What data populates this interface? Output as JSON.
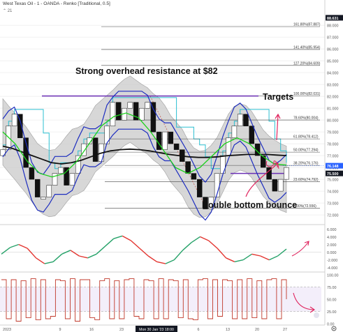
{
  "header": {
    "title": "West Texas Oil - 1 - OANDA - Renko [Traditional, 0.5]",
    "collapse_label": "⌃ 21"
  },
  "colors": {
    "up_brick": "#ffffff",
    "down_brick": "#111111",
    "keltner_blue": "#1d2dbf",
    "fast_ma": "#1bd11b",
    "slow_ma": "#111111",
    "teal_band": "#2bbfd1",
    "fib_line": "#444444",
    "purple_line": "#6a2fb4",
    "annotation_red": "#e0245e",
    "oscillator_red": "#e3342f",
    "oscillator_green": "#26a269",
    "stoch_line": "#c0392b",
    "price_tag_blue": "#2962ff",
    "price_tag_dark": "#131722"
  },
  "chart_data": [
    {
      "type": "line",
      "title": "West Texas Oil - 1 - OANDA - Renko [Traditional, 0.5]",
      "x_tick_labels": [
        "2023",
        "9",
        "16",
        "23",
        "Mon 30 Jan '23 18:00",
        "6",
        "13",
        "20",
        "27"
      ],
      "y_tick_labels": [
        "72.000",
        "73.000",
        "74.000",
        "75.000",
        "76.000",
        "77.000",
        "78.000",
        "79.000",
        "80.000",
        "81.000",
        "82.000",
        "83.000",
        "84.000",
        "85.000",
        "86.000",
        "87.000",
        "88.000"
      ],
      "ylim": [
        71.3,
        88.6
      ],
      "fib_levels": [
        {
          "label": "161.80%(87.887)",
          "value": 87.887
        },
        {
          "label": "141.40%(85.954)",
          "value": 85.954
        },
        {
          "label": "127.20%(84.609)",
          "value": 84.609
        },
        {
          "label": "100.00%(82.031)",
          "value": 82.031
        },
        {
          "label": "78.60%(80.004)",
          "value": 80.004
        },
        {
          "label": "61.80%(78.412)",
          "value": 78.412
        },
        {
          "label": "50.00%(77.294)",
          "value": 77.294
        },
        {
          "label": "38.20%(76.176)",
          "value": 76.176
        },
        {
          "label": "23.60%(74.792)",
          "value": 74.792
        },
        {
          "label": "0.00%(72.556)",
          "value": 72.556
        }
      ],
      "price_tags": [
        {
          "label": "88.631",
          "value": 88.631,
          "style": "dark"
        },
        {
          "label": "76.148",
          "value": 76.148,
          "style": "blue"
        },
        {
          "label": "75.500",
          "value": 75.5,
          "style": "dark"
        }
      ],
      "series": [
        {
          "name": "",
          "role": "renko_close",
          "values": [
            77.5,
            79.5,
            80.5,
            78.5,
            76.0,
            75.0,
            73.5,
            73.5,
            74.5,
            75.5,
            76.0,
            74.5,
            75.5,
            77.0,
            78.0,
            78.5,
            76.5,
            78.0,
            79.5,
            81.5,
            80.0,
            81.0,
            81.5,
            80.0,
            81.0,
            81.5,
            79.0,
            77.5,
            79.0,
            78.0,
            77.5,
            76.5,
            75.5,
            75.0,
            73.5,
            72.5,
            73.5,
            75.5,
            77.0,
            78.5,
            79.5,
            80.5,
            79.5,
            78.0,
            77.0,
            76.0,
            75.0,
            74.0,
            75.0,
            76.0
          ]
        },
        {
          "name": "",
          "role": "slow_ma",
          "values": [
            77.8,
            77.6,
            77.3,
            77.0,
            76.7,
            76.4,
            76.3,
            76.4,
            76.6,
            76.9,
            77.2,
            77.4,
            77.5,
            77.55,
            77.5,
            77.4,
            77.25,
            77.1,
            77.0,
            76.9,
            76.85,
            76.85,
            76.9,
            77.0,
            77.05,
            77.1,
            77.1,
            77.1,
            77.05,
            77.0
          ]
        },
        {
          "name": "",
          "role": "fast_ma",
          "values": [
            79.0,
            78.0,
            76.5,
            75.5,
            75.2,
            75.5,
            76.5,
            78.0,
            79.5,
            80.3,
            80.6,
            80.2,
            79.0,
            77.5,
            76.0,
            75.5,
            76.0,
            77.0,
            78.0,
            78.5,
            78.0,
            77.0,
            76.3,
            76.2
          ]
        }
      ],
      "horizontal_lines": [
        {
          "value": 82.031,
          "color": "purple",
          "label": "Strong overhead resistance at $82"
        },
        {
          "value": 75.5,
          "color": "purple",
          "label": ""
        }
      ],
      "annotations": [
        "Strong overhead resistance at $82",
        "Targets",
        "Double bottom bounce"
      ]
    },
    {
      "type": "line",
      "title": "",
      "y_tick_labels": [
        "6.000",
        "4.000",
        "2.000",
        "0.000",
        "-2.000",
        "-4.000"
      ],
      "ylim": [
        -4.8,
        6.8
      ],
      "series": [
        {
          "name": "",
          "values": [
            -0.5,
            1.2,
            2.0,
            1.0,
            -1.5,
            -3.0,
            -2.5,
            -0.5,
            0.5,
            -1.0,
            -1.5,
            -0.5,
            1.5,
            3.5,
            4.2,
            3.0,
            1.0,
            -1.0,
            -2.5,
            -3.0,
            -2.0,
            0.5,
            2.5,
            4.0,
            3.0,
            1.0,
            -1.5,
            -2.5,
            -2.0,
            -0.5,
            -1.0,
            -2.0,
            -1.0,
            0.8
          ]
        }
      ]
    },
    {
      "type": "line",
      "title": "",
      "y_tick_labels": [
        "100.00",
        "75.00",
        "50.00",
        "25.00",
        "0.00"
      ],
      "ylim": [
        0,
        100
      ],
      "hlines": [
        75,
        25
      ],
      "series": [
        {
          "name": "",
          "values": [
            90,
            10,
            90,
            5,
            88,
            12,
            92,
            8,
            90,
            10,
            15,
            90,
            88,
            10,
            92,
            5,
            90,
            90,
            12,
            8,
            88,
            92,
            10,
            88,
            10,
            90,
            92,
            15,
            10,
            90,
            88,
            10,
            92,
            10,
            90,
            88,
            12,
            90,
            10,
            8,
            90,
            92,
            10,
            90,
            15,
            90,
            88,
            10,
            90,
            10,
            92,
            12,
            88,
            10,
            90,
            92,
            10,
            90,
            50
          ]
        }
      ]
    }
  ]
}
